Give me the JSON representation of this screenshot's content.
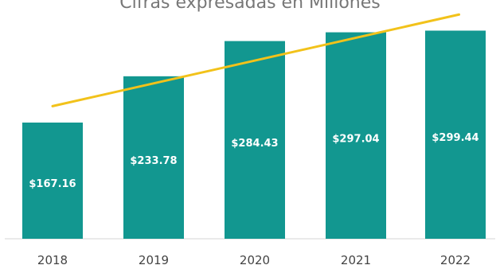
{
  "chart_data": {
    "type": "bar",
    "title": "Cifras expresadas en Millones",
    "categories": [
      "2018",
      "2019",
      "2020",
      "2021",
      "2022"
    ],
    "series": [
      {
        "values": [
          167.16,
          233.78,
          284.43,
          297.04,
          299.44
        ],
        "labels": [
          "$167.16",
          "$233.78",
          "$284.43",
          "$297.04",
          "$299.44"
        ],
        "color": "#129790"
      }
    ],
    "trendline": {
      "type": "linear",
      "color": "#F2C21A"
    },
    "ylim": [
      0,
      300
    ],
    "grid": false,
    "xlabel": "",
    "ylabel": ""
  }
}
